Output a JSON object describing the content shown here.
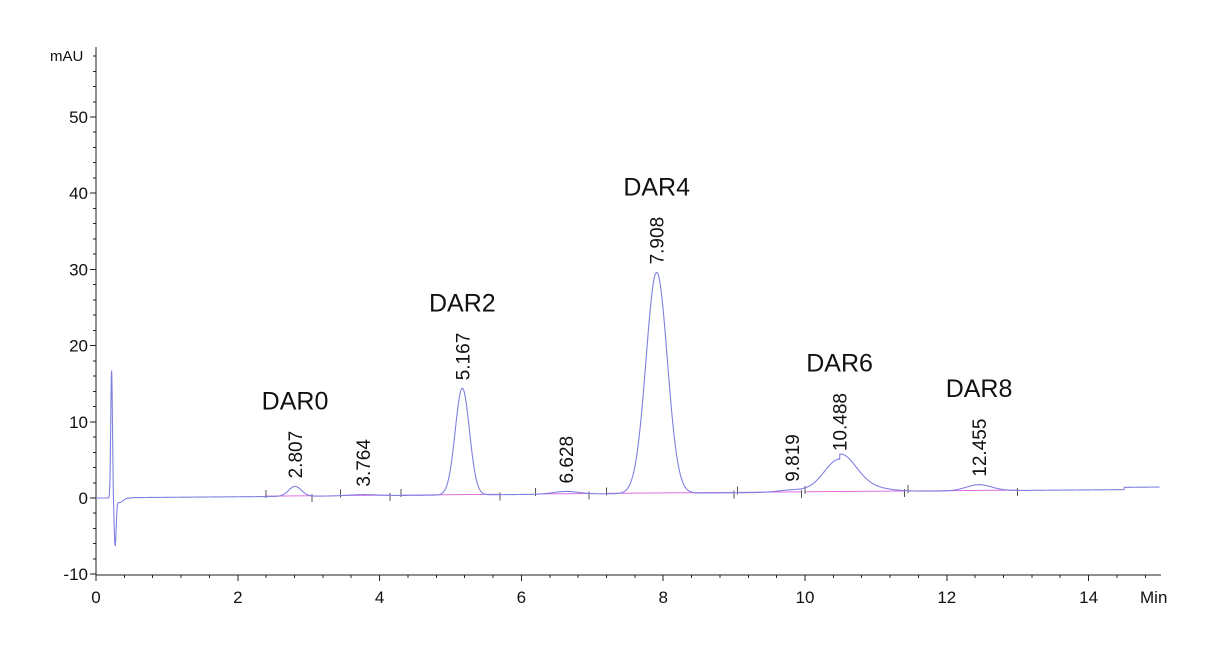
{
  "chart_data": {
    "type": "line",
    "x_unit": "Min",
    "y_unit": "mAU",
    "xlim": [
      0,
      15
    ],
    "ylim": [
      -10,
      60
    ],
    "x_ticks": [
      0,
      2,
      4,
      6,
      8,
      10,
      12,
      14
    ],
    "y_ticks": [
      -10,
      0,
      10,
      20,
      30,
      40,
      50
    ],
    "grid": false,
    "peaks": [
      {
        "name": "DAR0",
        "rt": 2.807,
        "rt_label": "2.807",
        "height": 1.3,
        "width": 0.09
      },
      {
        "name": "",
        "rt": 3.764,
        "rt_label": "3.764",
        "height": 0.15,
        "width": 0.2
      },
      {
        "name": "DAR2",
        "rt": 5.167,
        "rt_label": "5.167",
        "height": 14.0,
        "width": 0.1
      },
      {
        "name": "",
        "rt": 6.628,
        "rt_label": "6.628",
        "height": 0.35,
        "width": 0.18
      },
      {
        "name": "DAR4",
        "rt": 7.908,
        "rt_label": "7.908",
        "height": 29.0,
        "width": 0.15
      },
      {
        "name": "",
        "rt": 9.819,
        "rt_label": "9.819",
        "height": 0.3,
        "width": 0.2
      },
      {
        "name": "DAR6",
        "rt": 10.488,
        "rt_label": "10.488",
        "height": 4.3,
        "width": 0.22
      },
      {
        "name": "DAR8",
        "rt": 12.455,
        "rt_label": "12.455",
        "height": 0.8,
        "width": 0.18
      }
    ],
    "baseline_segments": [
      [
        2.4,
        3.05
      ],
      [
        3.45,
        4.15
      ],
      [
        4.3,
        5.7
      ],
      [
        6.2,
        6.95
      ],
      [
        7.2,
        9.0
      ],
      [
        9.05,
        9.95
      ],
      [
        10.0,
        11.4
      ],
      [
        11.45,
        13.0
      ]
    ]
  }
}
